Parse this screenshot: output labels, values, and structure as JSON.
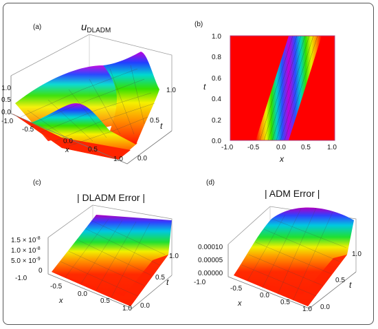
{
  "figure": {
    "panels": [
      {
        "id": "a",
        "label": "(a)",
        "title_main": "u",
        "title_sub": "DLADM",
        "type": "surface3d",
        "x_ticks": [
          "-1.0",
          "-0.5",
          "0.0",
          "0.5",
          "1.0"
        ],
        "t_ticks": [
          "0.0",
          "0.5",
          "1.0"
        ],
        "z_ticks": [
          "0.0",
          "0.5",
          "1.0"
        ],
        "x_label": "x",
        "t_label": "t"
      },
      {
        "id": "b",
        "label": "(b)",
        "type": "density",
        "x_ticks": [
          "-1.0",
          "-0.5",
          "0.0",
          "0.5",
          "1.0"
        ],
        "y_ticks": [
          "0.0",
          "0.2",
          "0.4",
          "0.6",
          "0.8",
          "1.0"
        ],
        "x_label": "x",
        "y_label": "t"
      },
      {
        "id": "c",
        "label": "(c)",
        "title": "| DLADM Error |",
        "type": "surface3d",
        "x_ticks": [
          "-1.0",
          "-0.5",
          "0.0",
          "0.5",
          "1.0"
        ],
        "t_ticks": [
          "0.0",
          "0.5",
          "1.0"
        ],
        "z_ticks": [
          "0",
          "5.0 × 10",
          "1.0 × 10",
          "1.5 × 10"
        ],
        "z_exponent": "-9",
        "z_exponent2": "-8",
        "x_label": "x",
        "t_label": "t"
      },
      {
        "id": "d",
        "label": "(d)",
        "title": "| ADM Error |",
        "type": "surface3d",
        "x_ticks": [
          "-1.0",
          "-0.5",
          "0.0",
          "0.5",
          "1.0"
        ],
        "t_ticks": [
          "0.0",
          "0.5",
          "1.0"
        ],
        "z_ticks": [
          "0.00000",
          "0.00005",
          "0.00010"
        ],
        "x_label": "x",
        "t_label": "t"
      }
    ]
  },
  "chart_data": [
    {
      "type": "heatmap",
      "panel": "(a)",
      "title": "u_DLADM",
      "xlabel": "x",
      "ylabel": "t",
      "xlim": [
        -1.0,
        1.0
      ],
      "ylim": [
        0.0,
        1.0
      ],
      "zlim": [
        0.0,
        1.0
      ]
    },
    {
      "type": "heatmap",
      "panel": "(b)",
      "xlabel": "x",
      "ylabel": "t",
      "xlim": [
        -1.0,
        1.0
      ],
      "ylim": [
        0.0,
        1.0
      ]
    },
    {
      "type": "heatmap",
      "panel": "(c)",
      "title": "| DLADM Error |",
      "xlabel": "x",
      "ylabel": "t",
      "xlim": [
        -1.0,
        1.0
      ],
      "ylim": [
        0.0,
        1.0
      ],
      "zlim": [
        0,
        1.5e-08
      ]
    },
    {
      "type": "heatmap",
      "panel": "(d)",
      "title": "| ADM Error |",
      "xlabel": "x",
      "ylabel": "t",
      "xlim": [
        -1.0,
        1.0
      ],
      "ylim": [
        0.0,
        1.0
      ],
      "zlim": [
        0.0,
        0.0001
      ]
    }
  ]
}
